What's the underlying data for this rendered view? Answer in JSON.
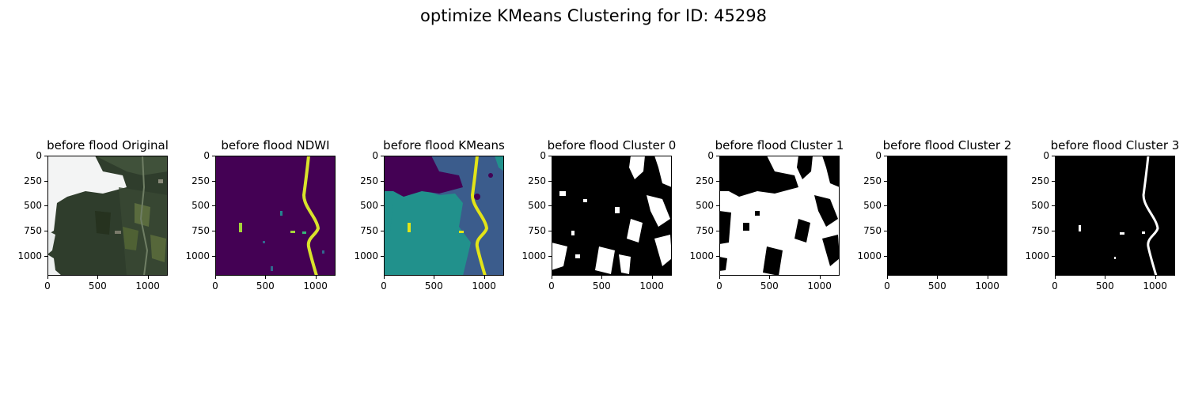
{
  "chart_data": {
    "type": "heatmap",
    "title": "optimize KMeans Clustering for ID: 45298",
    "panels": [
      {
        "title": "before flood Original"
      },
      {
        "title": "before flood NDWI"
      },
      {
        "title": "before flood KMeans"
      },
      {
        "title": "before flood Cluster 0"
      },
      {
        "title": "before flood Cluster 1"
      },
      {
        "title": "before flood Cluster 2"
      },
      {
        "title": "before flood Cluster 3"
      }
    ],
    "image_extent": [
      0,
      1200
    ],
    "xticks": [
      "0",
      "500",
      "1000"
    ],
    "xtick_values": [
      0,
      500,
      1000
    ],
    "yticks": [
      "0",
      "250",
      "500",
      "750",
      "1000"
    ],
    "ytick_values": [
      0,
      250,
      500,
      750,
      1000
    ]
  }
}
